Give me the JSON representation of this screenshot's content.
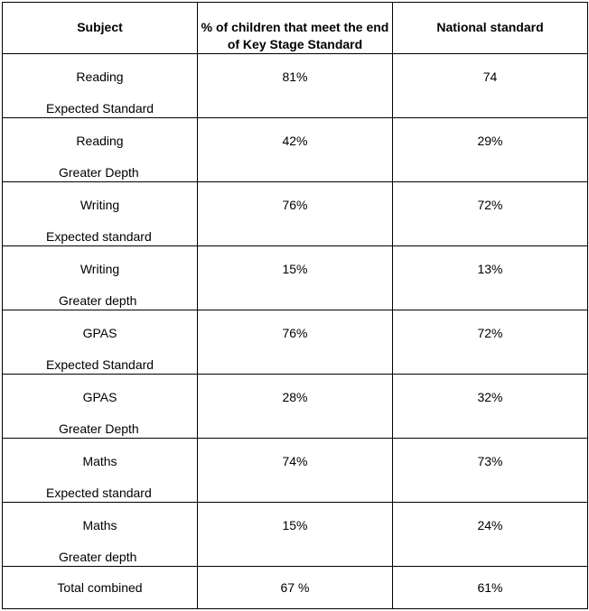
{
  "headers": {
    "subject": "Subject",
    "percent_meet": "% of children that meet the end of Key Stage Standard",
    "national": "National standard"
  },
  "rows": [
    {
      "subject": "Reading",
      "level": "Expected Standard",
      "percent": "81%",
      "national": "74"
    },
    {
      "subject": "Reading",
      "level": "Greater Depth",
      "percent": "42%",
      "national": "29%"
    },
    {
      "subject": "Writing",
      "level": "Expected standard",
      "percent": "76%",
      "national": "72%"
    },
    {
      "subject": "Writing",
      "level": "Greater depth",
      "percent": "15%",
      "national": "13%"
    },
    {
      "subject": "GPAS",
      "level": "Expected Standard",
      "percent": "76%",
      "national": "72%"
    },
    {
      "subject": "GPAS",
      "level": "Greater Depth",
      "percent": "28%",
      "national": "32%"
    },
    {
      "subject": "Maths",
      "level": "Expected standard",
      "percent": "74%",
      "national": "73%"
    },
    {
      "subject": "Maths",
      "level": "Greater depth",
      "percent": "15%",
      "national": "24%"
    }
  ],
  "total": {
    "label": "Total combined",
    "percent": "67 %",
    "national": "61%"
  }
}
